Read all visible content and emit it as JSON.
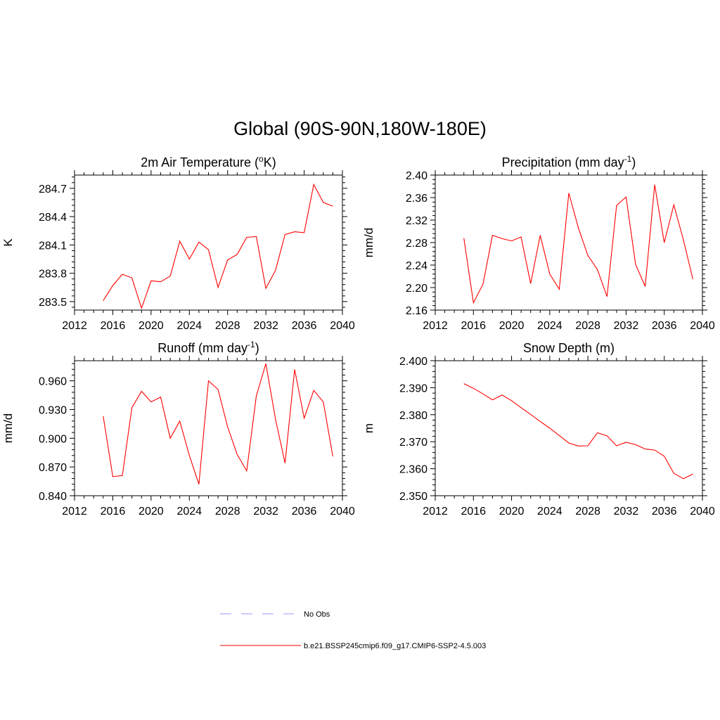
{
  "figure": {
    "title": "Global (90S-90N,180W-180E)"
  },
  "legend": {
    "placement": "bottom-center",
    "entries": [
      {
        "label": "No Obs",
        "color": "#9999ff",
        "style": "dashed"
      },
      {
        "label": "b.e21.BSSP245cmip6.f09_g17.CMIP6-SSP2-4.5.003",
        "color": "#ff0000",
        "style": "solid"
      }
    ]
  },
  "chart_data": [
    {
      "type": "line",
      "title": "2m Air Temperature (",
      "title_sup": "o",
      "title_end": "K)",
      "ylabel": "K",
      "xlabel": "",
      "xlim": [
        2012,
        2040
      ],
      "ylim": [
        283.41,
        284.84
      ],
      "xticks": [
        2012,
        2016,
        2020,
        2024,
        2028,
        2032,
        2036,
        2040
      ],
      "yticks": [
        283.5,
        283.8,
        284.1,
        284.4,
        284.7
      ],
      "ytick_labels": [
        "283.5",
        "283.8",
        "284.1",
        "284.4",
        "284.7"
      ],
      "series": [
        {
          "name": "b.e21.BSSP245cmip6.f09_g17.CMIP6-SSP2-4.5.003",
          "color": "#ff0000",
          "x": [
            2015,
            2016,
            2017,
            2018,
            2019,
            2020,
            2021,
            2022,
            2023,
            2024,
            2025,
            2026,
            2027,
            2028,
            2029,
            2030,
            2031,
            2032,
            2033,
            2034,
            2035,
            2036,
            2037,
            2038,
            2039
          ],
          "y": [
            283.51,
            283.67,
            283.79,
            283.75,
            283.43,
            283.72,
            283.71,
            283.77,
            284.14,
            283.95,
            284.13,
            284.05,
            283.65,
            283.94,
            284.0,
            284.18,
            284.19,
            283.64,
            283.83,
            284.21,
            284.24,
            284.23,
            284.74,
            284.55,
            284.51
          ]
        }
      ]
    },
    {
      "type": "line",
      "title": "Precipitation (mm day",
      "title_sup": "-1",
      "title_end": ")",
      "ylabel": "mm/d",
      "xlabel": "",
      "xlim": [
        2012,
        2040
      ],
      "ylim": [
        2.16,
        2.4
      ],
      "xticks": [
        2012,
        2016,
        2020,
        2024,
        2028,
        2032,
        2036,
        2040
      ],
      "yticks": [
        2.16,
        2.2,
        2.24,
        2.28,
        2.32,
        2.36,
        2.4
      ],
      "ytick_labels": [
        "2.16",
        "2.20",
        "2.24",
        "2.28",
        "2.32",
        "2.36",
        "2.40"
      ],
      "series": [
        {
          "name": "b.e21.BSSP245cmip6.f09_g17.CMIP6-SSP2-4.5.003",
          "color": "#ff0000",
          "x": [
            2015,
            2016,
            2017,
            2018,
            2019,
            2020,
            2021,
            2022,
            2023,
            2024,
            2025,
            2026,
            2027,
            2028,
            2029,
            2030,
            2031,
            2032,
            2033,
            2034,
            2035,
            2036,
            2037,
            2038,
            2039
          ],
          "y": [
            2.288,
            2.173,
            2.206,
            2.293,
            2.287,
            2.283,
            2.29,
            2.207,
            2.293,
            2.224,
            2.197,
            2.368,
            2.306,
            2.257,
            2.232,
            2.184,
            2.346,
            2.361,
            2.241,
            2.202,
            2.383,
            2.28,
            2.347,
            2.285,
            2.215
          ]
        }
      ]
    },
    {
      "type": "line",
      "title": "Runoff (mm day",
      "title_sup": "-1",
      "title_end": ")",
      "ylabel": "mm/d",
      "xlabel": "",
      "xlim": [
        2012,
        2040
      ],
      "ylim": [
        0.84,
        0.981
      ],
      "xticks": [
        2012,
        2016,
        2020,
        2024,
        2028,
        2032,
        2036,
        2040
      ],
      "yticks": [
        0.84,
        0.87,
        0.9,
        0.93,
        0.96
      ],
      "ytick_labels": [
        "0.840",
        "0.870",
        "0.900",
        "0.930",
        "0.960"
      ],
      "series": [
        {
          "name": "b.e21.BSSP245cmip6.f09_g17.CMIP6-SSP2-4.5.003",
          "color": "#ff0000",
          "x": [
            2015,
            2016,
            2017,
            2018,
            2019,
            2020,
            2021,
            2022,
            2023,
            2024,
            2025,
            2026,
            2027,
            2028,
            2029,
            2030,
            2031,
            2032,
            2033,
            2034,
            2035,
            2036,
            2037,
            2038,
            2039
          ],
          "y": [
            0.923,
            0.86,
            0.861,
            0.932,
            0.949,
            0.938,
            0.943,
            0.9,
            0.918,
            0.882,
            0.852,
            0.96,
            0.951,
            0.912,
            0.883,
            0.866,
            0.944,
            0.978,
            0.92,
            0.874,
            0.972,
            0.921,
            0.95,
            0.938,
            0.881
          ]
        }
      ]
    },
    {
      "type": "line",
      "title": "Snow Depth (m)",
      "title_sup": "",
      "title_end": "",
      "ylabel": "m",
      "xlabel": "",
      "xlim": [
        2012,
        2040
      ],
      "ylim": [
        2.35,
        2.4
      ],
      "xticks": [
        2012,
        2016,
        2020,
        2024,
        2028,
        2032,
        2036,
        2040
      ],
      "yticks": [
        2.35,
        2.36,
        2.37,
        2.38,
        2.39,
        2.4
      ],
      "ytick_labels": [
        "2.350",
        "2.360",
        "2.370",
        "2.380",
        "2.390",
        "2.400"
      ],
      "series": [
        {
          "name": "b.e21.BSSP245cmip6.f09_g17.CMIP6-SSP2-4.5.003",
          "color": "#ff0000",
          "x": [
            2015,
            2016,
            2017,
            2018,
            2019,
            2020,
            2021,
            2022,
            2023,
            2024,
            2025,
            2026,
            2027,
            2028,
            2029,
            2030,
            2031,
            2032,
            2033,
            2034,
            2035,
            2036,
            2037,
            2038,
            2039
          ],
          "y": [
            2.3915,
            2.3898,
            2.3877,
            2.3855,
            2.3873,
            2.3852,
            2.3826,
            2.3801,
            2.3775,
            2.375,
            2.3723,
            2.3695,
            2.3684,
            2.3685,
            2.3733,
            2.3722,
            2.3685,
            2.3698,
            2.3689,
            2.3673,
            2.3669,
            2.3646,
            2.3583,
            2.3563,
            2.358
          ]
        }
      ]
    }
  ]
}
